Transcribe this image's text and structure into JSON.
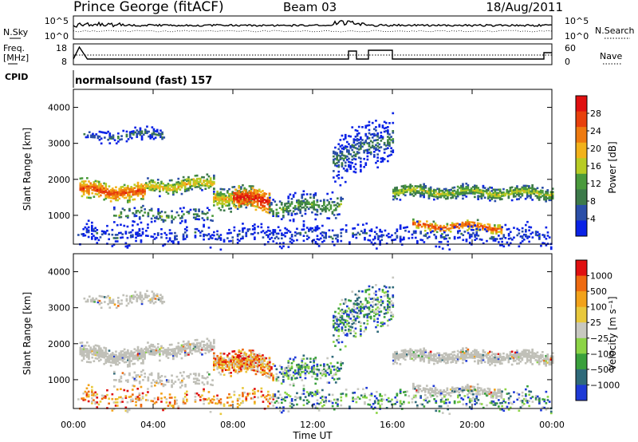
{
  "header": {
    "station": "Prince George (fitACF)",
    "beam": "Beam 03",
    "date": "18/Aug/2011"
  },
  "strip": {
    "nsky_label": "N.Sky",
    "nsearch_label": "N.Search",
    "left_ticks": [
      "10^5",
      "10^0"
    ],
    "right_ticks": [
      "10^5",
      "10^0"
    ],
    "freq_label": "Freq.",
    "freq_unit": "[MHz]",
    "freq_ticks": [
      "18",
      "8"
    ],
    "nave_label": "Nave",
    "nave_ticks": [
      "60",
      "0"
    ],
    "cpid_label": "CPID",
    "cpid_value": "normalsound (fast) 157"
  },
  "colors": {
    "power_scale": [
      "#0a22e6",
      "#2b4fa8",
      "#3d7a4a",
      "#4a9a3c",
      "#b8cc24",
      "#f2b21a",
      "#ee7a10",
      "#e8400c",
      "#e01010"
    ],
    "velocity_scale": [
      "#e01010",
      "#ee6a10",
      "#f2a21a",
      "#e8c83c",
      "#c8c8c0",
      "#8cd446",
      "#3aa03c",
      "#2f6a7a",
      "#1e3ad6"
    ],
    "ground_scatter": "#c0c0b8"
  },
  "chart_data": [
    {
      "type": "heatmap",
      "name": "power",
      "ylabel": "Slant Range [km]",
      "ylim": [
        200,
        4500
      ],
      "yticks": [
        "1000",
        "2000",
        "3000",
        "4000"
      ],
      "xlim": [
        0,
        24
      ],
      "colorbar_label": "Power [dB]",
      "colorbar_ticks": [
        "4",
        "8",
        "12",
        "16",
        "20",
        "24",
        "28"
      ],
      "clim": [
        0,
        30
      ]
    },
    {
      "type": "heatmap",
      "name": "velocity",
      "ylabel": "Slant Range [km]",
      "ylim": [
        200,
        4500
      ],
      "yticks": [
        "1000",
        "2000",
        "3000",
        "4000"
      ],
      "xlim": [
        0,
        24
      ],
      "colorbar_label": "Velocity [m s⁻¹]",
      "colorbar_ticks": [
        "1000",
        "500",
        "100",
        "25",
        "−25",
        "−100",
        "−500",
        "−1000"
      ]
    }
  ],
  "xaxis": {
    "label": "Time UT",
    "ticks": [
      "00:00",
      "04:00",
      "08:00",
      "12:00",
      "16:00",
      "20:00",
      "00:00"
    ]
  }
}
